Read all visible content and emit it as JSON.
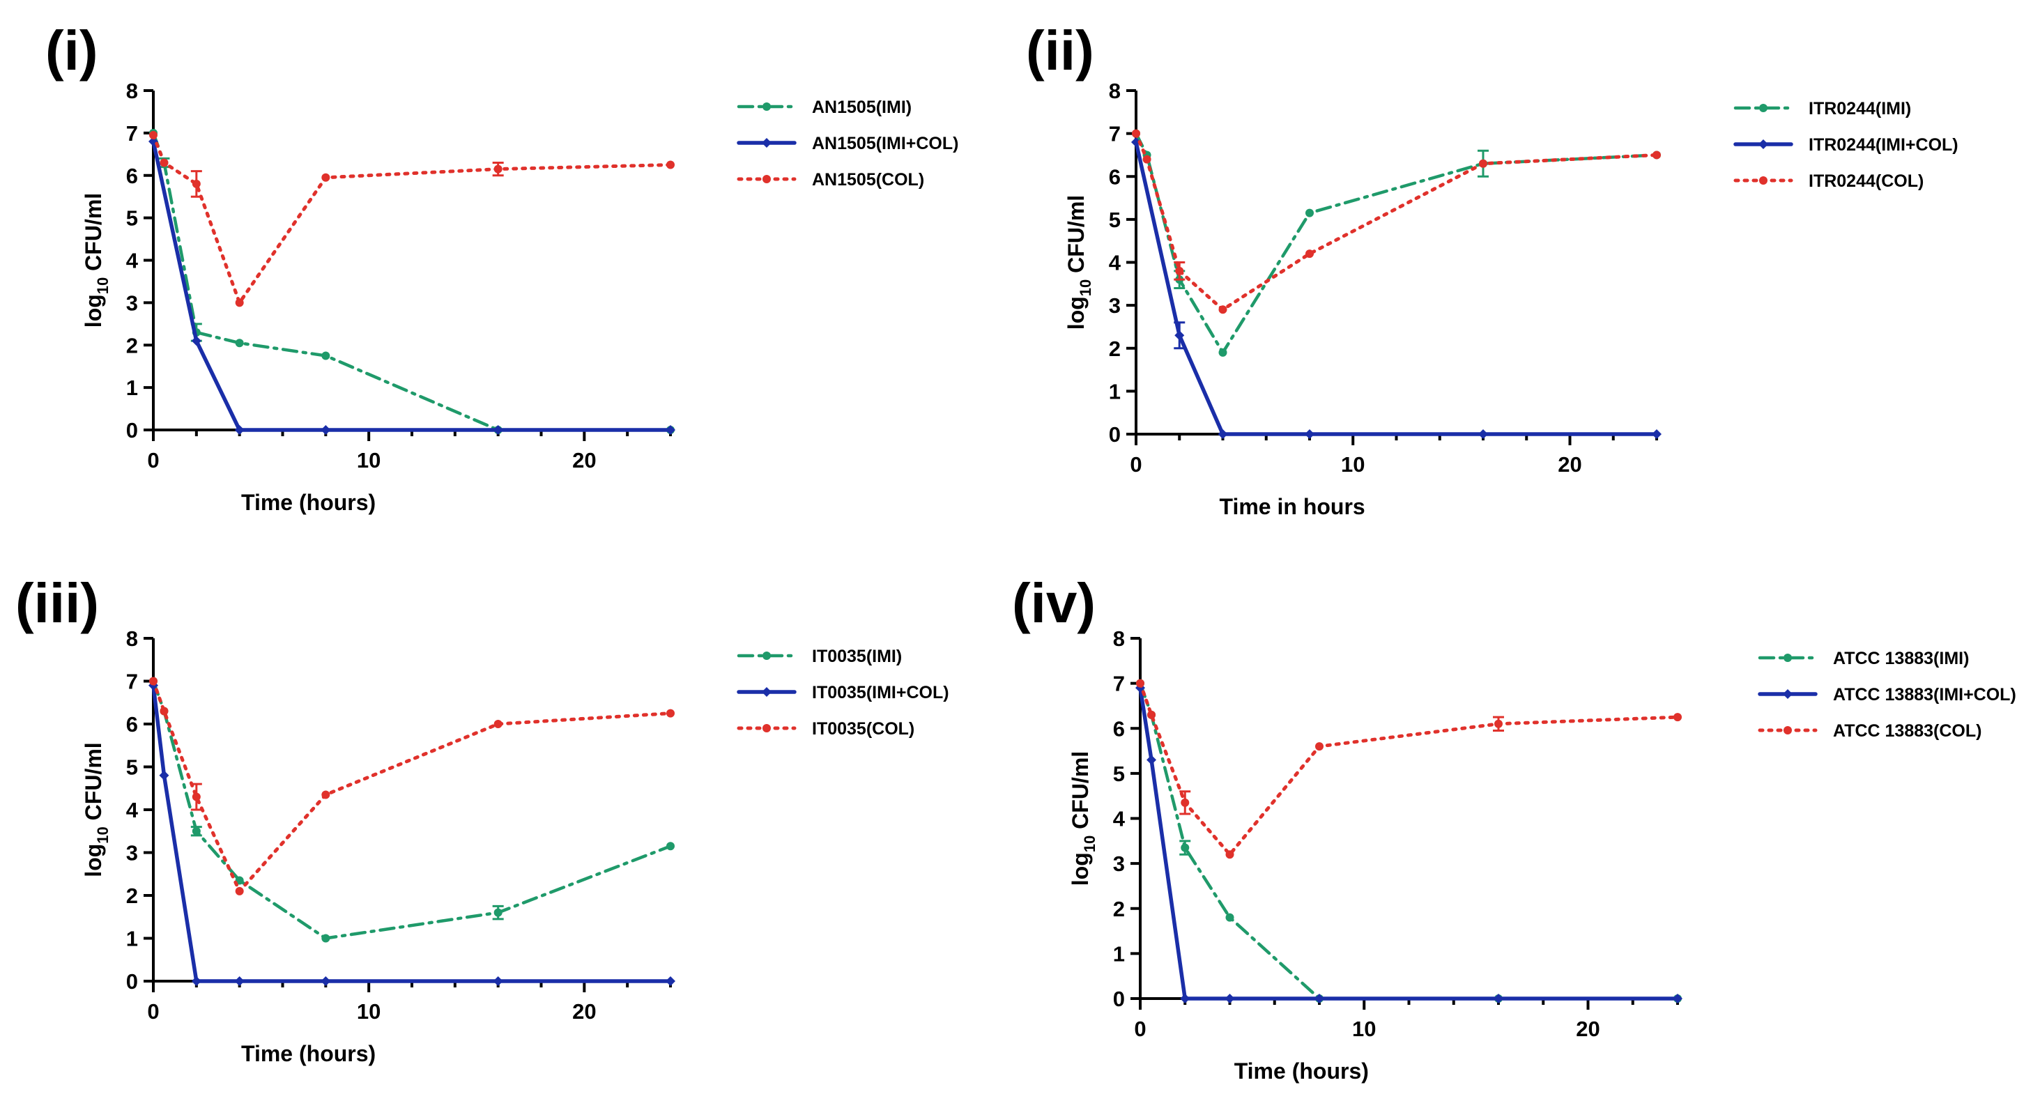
{
  "chart_data": [
    {
      "type": "line",
      "panel_label": "(i)",
      "xlabel": "Time (hours)",
      "ylabel_prefix": "log",
      "ylabel_sub": "10",
      "ylabel_suffix": " CFU/ml",
      "xlim": [
        0,
        24
      ],
      "ylim": [
        0,
        8
      ],
      "x_ticks": [
        0,
        10,
        20
      ],
      "y_ticks": [
        0,
        1,
        2,
        3,
        4,
        5,
        6,
        7,
        8
      ],
      "series": [
        {
          "name": "AN1505(IMI)",
          "style": "imi",
          "x": [
            0,
            0.5,
            2,
            4,
            8,
            16,
            24
          ],
          "y": [
            7,
            6.3,
            2.3,
            2.05,
            1.75,
            0,
            0
          ],
          "err": [
            0,
            0.1,
            0.2,
            0,
            0,
            0,
            0
          ]
        },
        {
          "name": "AN1505(IMI+COL)",
          "style": "comb",
          "x": [
            0,
            2,
            4,
            8,
            16,
            24
          ],
          "y": [
            6.8,
            2.1,
            0,
            0,
            0,
            0
          ],
          "err": [
            0,
            0,
            0,
            0,
            0,
            0
          ]
        },
        {
          "name": "AN1505(COL)",
          "style": "col",
          "x": [
            0,
            0.5,
            2,
            4,
            8,
            16,
            24
          ],
          "y": [
            6.95,
            6.3,
            5.8,
            3.0,
            5.95,
            6.15,
            6.25
          ],
          "err": [
            0,
            0,
            0.3,
            0,
            0,
            0.15,
            0
          ]
        }
      ]
    },
    {
      "type": "line",
      "panel_label": "(ii)",
      "xlabel": "Time in hours",
      "ylabel_prefix": "log",
      "ylabel_sub": "10",
      "ylabel_suffix": " CFU/ml",
      "xlim": [
        0,
        24
      ],
      "ylim": [
        0,
        8
      ],
      "x_ticks": [
        0,
        10,
        20
      ],
      "y_ticks": [
        0,
        1,
        2,
        3,
        4,
        5,
        6,
        7,
        8
      ],
      "series": [
        {
          "name": "ITR0244(IMI)",
          "style": "imi",
          "x": [
            0,
            0.5,
            2,
            4,
            8,
            16,
            24
          ],
          "y": [
            7,
            6.5,
            3.6,
            1.9,
            5.15,
            6.3,
            6.5
          ],
          "err": [
            0,
            0,
            0.2,
            0,
            0,
            0.3,
            0
          ]
        },
        {
          "name": "ITR0244(IMI+COL)",
          "style": "comb",
          "x": [
            0,
            2,
            4,
            8,
            16,
            24
          ],
          "y": [
            6.8,
            2.3,
            0,
            0,
            0,
            0
          ],
          "err": [
            0,
            0.3,
            0,
            0,
            0,
            0
          ]
        },
        {
          "name": "ITR0244(COL)",
          "style": "col",
          "x": [
            0,
            0.5,
            2,
            4,
            8,
            16,
            24
          ],
          "y": [
            7,
            6.4,
            3.8,
            2.9,
            4.2,
            6.3,
            6.5
          ],
          "err": [
            0,
            0,
            0.2,
            0,
            0,
            0,
            0
          ]
        }
      ]
    },
    {
      "type": "line",
      "panel_label": "(iii)",
      "xlabel": "Time (hours)",
      "ylabel_prefix": "log",
      "ylabel_sub": "10",
      "ylabel_suffix": " CFU/ml",
      "xlim": [
        0,
        24
      ],
      "ylim": [
        0,
        8
      ],
      "x_ticks": [
        0,
        10,
        20
      ],
      "y_ticks": [
        0,
        1,
        2,
        3,
        4,
        5,
        6,
        7,
        8
      ],
      "series": [
        {
          "name": "IT0035(IMI)",
          "style": "imi",
          "x": [
            0,
            0.5,
            2,
            4,
            8,
            16,
            24
          ],
          "y": [
            7,
            6.3,
            3.5,
            2.35,
            1.0,
            1.6,
            3.15
          ],
          "err": [
            0,
            0,
            0.1,
            0,
            0,
            0.15,
            0
          ]
        },
        {
          "name": "IT0035(IMI+COL)",
          "style": "comb",
          "x": [
            0,
            0.5,
            2,
            4,
            8,
            16,
            24
          ],
          "y": [
            6.9,
            4.8,
            0,
            0,
            0,
            0,
            0
          ],
          "err": [
            0,
            0,
            0,
            0,
            0,
            0,
            0
          ]
        },
        {
          "name": "IT0035(COL)",
          "style": "col",
          "x": [
            0,
            0.5,
            2,
            4,
            8,
            16,
            24
          ],
          "y": [
            7,
            6.3,
            4.3,
            2.1,
            4.35,
            6.0,
            6.25
          ],
          "err": [
            0,
            0,
            0.3,
            0,
            0,
            0,
            0
          ]
        }
      ]
    },
    {
      "type": "line",
      "panel_label": "(iv)",
      "xlabel": "Time (hours)",
      "ylabel_prefix": "log",
      "ylabel_sub": "10",
      "ylabel_suffix": " CFU/ml",
      "xlim": [
        0,
        24
      ],
      "ylim": [
        0,
        8
      ],
      "x_ticks": [
        0,
        10,
        20
      ],
      "y_ticks": [
        0,
        1,
        2,
        3,
        4,
        5,
        6,
        7,
        8
      ],
      "series": [
        {
          "name": "ATCC 13883(IMI)",
          "style": "imi",
          "x": [
            0,
            0.5,
            2,
            4,
            8,
            16,
            24
          ],
          "y": [
            7,
            6.3,
            3.35,
            1.8,
            0,
            0,
            0
          ],
          "err": [
            0,
            0,
            0.15,
            0,
            0,
            0,
            0
          ]
        },
        {
          "name": "ATCC 13883(IMI+COL)",
          "style": "comb",
          "x": [
            0,
            0.5,
            2,
            4,
            8,
            16,
            24
          ],
          "y": [
            6.9,
            5.3,
            0,
            0,
            0,
            0,
            0
          ],
          "err": [
            0,
            0,
            0,
            0,
            0,
            0,
            0
          ]
        },
        {
          "name": "ATCC 13883(COL)",
          "style": "col",
          "x": [
            0,
            0.5,
            2,
            4,
            8,
            16,
            24
          ],
          "y": [
            7,
            6.3,
            4.35,
            3.2,
            5.6,
            6.1,
            6.25
          ],
          "err": [
            0,
            0,
            0.25,
            0,
            0,
            0.15,
            0
          ]
        }
      ]
    }
  ],
  "colors": {
    "imi": "#1f9a6a",
    "comb": "#1a2ea8",
    "col": "#e0312b",
    "axis": "#000000"
  }
}
